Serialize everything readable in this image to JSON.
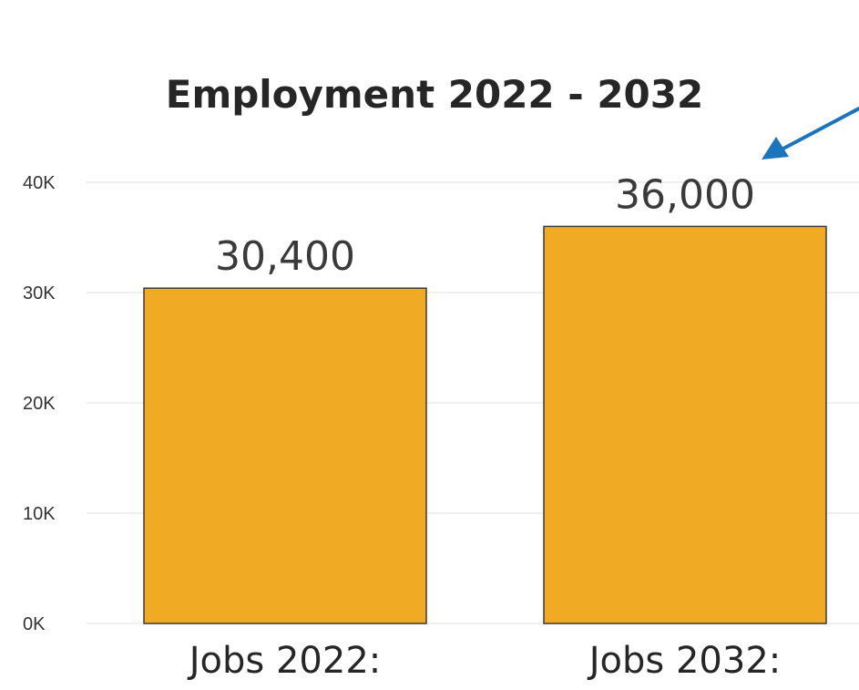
{
  "chart_data": {
    "type": "bar",
    "title": "Employment 2022 - 2032",
    "categories": [
      "Jobs 2022:",
      "Jobs 2032:"
    ],
    "values": [
      30400,
      36000
    ],
    "data_labels": [
      "30,400",
      "36,000"
    ],
    "ylim": [
      0,
      40000
    ],
    "yticks": [
      0,
      10000,
      20000,
      30000,
      40000
    ],
    "ytick_labels": [
      "0K",
      "10K",
      "20K",
      "30K",
      "40K"
    ],
    "grid": true,
    "bar_color": "#F0AA24",
    "bar_edge_color": "#3a3a3a",
    "annotation_arrow_color": "#1C75BC"
  }
}
